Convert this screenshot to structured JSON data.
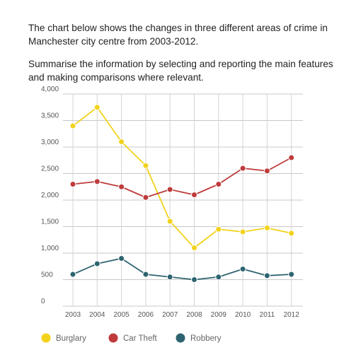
{
  "prompt": {
    "line1": "The chart below shows the changes in three different areas of crime in Manchester city centre from 2003-2012.",
    "line2": "Summarise the information by selecting and reporting the main features and making comparisons where relevant."
  },
  "chart_data": {
    "type": "line",
    "title": "",
    "xlabel": "",
    "ylabel": "",
    "x": [
      "2003",
      "2004",
      "2005",
      "2006",
      "2007",
      "2008",
      "2009",
      "2010",
      "2011",
      "2012"
    ],
    "ylim": [
      0,
      4000
    ],
    "yticks": [
      0,
      500,
      1000,
      1500,
      2000,
      2500,
      3000,
      3500,
      4000
    ],
    "ytick_labels": [
      "0",
      "500",
      "1,000",
      "1,500",
      "2,000",
      "2,500",
      "3,000",
      "3,500",
      "4,000"
    ],
    "grid": true,
    "legend_position": "bottom-left",
    "series": [
      {
        "name": "Burglary",
        "color": "#f2d21b",
        "values": [
          3400,
          3750,
          3100,
          2650,
          1600,
          1100,
          1450,
          1400,
          1475,
          1375
        ]
      },
      {
        "name": "Car Theft",
        "color": "#bf3b3b",
        "values": [
          2300,
          2350,
          2250,
          2050,
          2200,
          2100,
          2300,
          2600,
          2550,
          2800
        ]
      },
      {
        "name": "Robbery",
        "color": "#2e6470",
        "values": [
          600,
          800,
          900,
          600,
          550,
          500,
          550,
          700,
          575,
          600
        ]
      }
    ]
  }
}
